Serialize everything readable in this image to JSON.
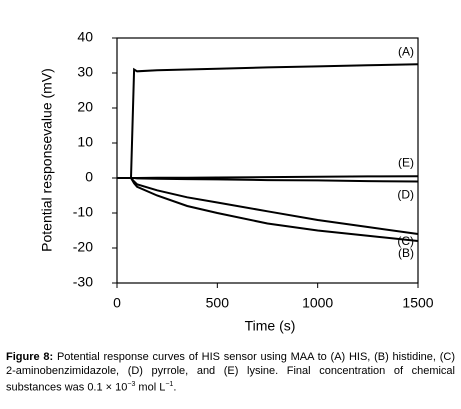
{
  "chart_data": {
    "type": "line",
    "x_label": "Time (s)",
    "y_label": "Potential responsevalue (mV)",
    "x": [
      0,
      70,
      85,
      100,
      200,
      350,
      500,
      750,
      1000,
      1250,
      1500
    ],
    "series": [
      {
        "name": "(A)",
        "color": "#000000",
        "values": [
          0,
          0,
          31,
          30.5,
          30.8,
          31,
          31.2,
          31.6,
          31.9,
          32.2,
          32.5
        ]
      },
      {
        "name": "(B)",
        "color": "#000000",
        "values": [
          0,
          0,
          -1.5,
          -2.5,
          -5,
          -8,
          -10,
          -13,
          -15,
          -16.5,
          -18
        ]
      },
      {
        "name": "(C)",
        "color": "#000000",
        "values": [
          0,
          0,
          -1,
          -1.8,
          -3.5,
          -5.5,
          -7,
          -9.5,
          -12,
          -14,
          -16
        ]
      },
      {
        "name": "(D)",
        "color": "#000000",
        "values": [
          0,
          0,
          0,
          -0.1,
          -0.2,
          -0.3,
          -0.4,
          -0.6,
          -0.7,
          -0.9,
          -1
        ]
      },
      {
        "name": "(E)",
        "color": "#000000",
        "values": [
          0,
          0,
          0,
          0,
          0.05,
          0.1,
          0.15,
          0.25,
          0.35,
          0.45,
          0.5
        ]
      }
    ],
    "xlim": [
      0,
      1500
    ],
    "xticks": [
      0,
      500,
      1000,
      1500
    ],
    "ylim": [
      -30,
      40
    ],
    "yticks": [
      -30,
      -20,
      -10,
      0,
      10,
      20,
      30,
      40
    ]
  },
  "caption": {
    "label": "Figure 8:",
    "text": " Potential response curves of HIS sensor using MAA to (A) HIS, (B) histidine, (C) 2-aminobenzimidazole, (D) pyrrole, and (E) lysine. Final concentration of chemical substances was 0.1 × 10",
    "sup1": "−3",
    "text2": " mol L",
    "sup2": "−1",
    "text3": "."
  }
}
